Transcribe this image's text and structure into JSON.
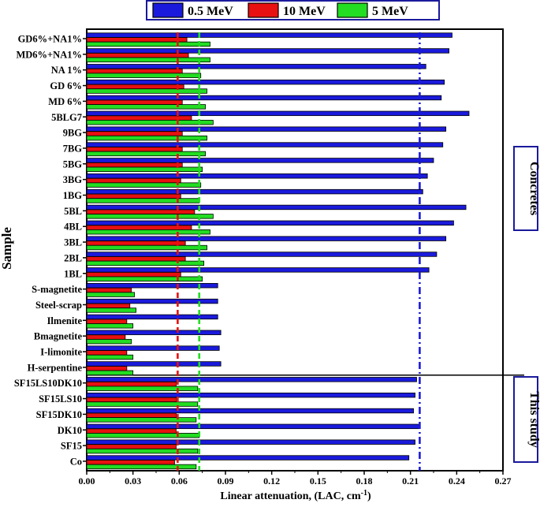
{
  "chart_data": {
    "type": "bar",
    "orientation": "horizontal",
    "xlabel": "Linear attenuation, (LAC, cm",
    "xlabel_sup": "-1",
    "xlabel_close": ")",
    "ylabel": "Sample",
    "xlim": [
      0.0,
      0.27
    ],
    "xticks": [
      "0.00",
      "0.03",
      "0.06",
      "0.09",
      "0.12",
      "0.15",
      "0.18",
      "0.21",
      "0.24",
      "0.27"
    ],
    "legend_position": "top-center",
    "group_labels": {
      "concretes": "Concretes",
      "this_study": "This study"
    },
    "categories": [
      "GD6%+NA1%",
      "MD6%+NA1%",
      "NA 1%",
      "GD 6%",
      "MD 6%",
      "5BLG7",
      "9BG",
      "7BG",
      "5BG",
      "3BG",
      "1BG",
      "5BL",
      "4BL",
      "3BL",
      "2BL",
      "1BL",
      "S-magnetite",
      "Steel-scrap",
      "Ilmenite",
      "Bmagnetite",
      "I-limonite",
      "H-serpentine",
      "SF15LS10DK10",
      "SF15LS10",
      "SF15DK10",
      "DK10",
      "SF15",
      "Co"
    ],
    "series": [
      {
        "name": "0.5 MeV",
        "color": "#1a1adc",
        "values": [
          0.237,
          0.235,
          0.22,
          0.232,
          0.23,
          0.248,
          0.233,
          0.231,
          0.225,
          0.221,
          0.218,
          0.246,
          0.238,
          0.233,
          0.227,
          0.222,
          0.085,
          0.085,
          0.085,
          0.087,
          0.086,
          0.087,
          0.214,
          0.213,
          0.212,
          0.216,
          0.213,
          0.209
        ]
      },
      {
        "name": "10 MeV",
        "color": "#e81010",
        "values": [
          0.065,
          0.066,
          0.062,
          0.063,
          0.062,
          0.068,
          0.062,
          0.062,
          0.062,
          0.061,
          0.061,
          0.07,
          0.068,
          0.064,
          0.064,
          0.061,
          0.029,
          0.028,
          0.026,
          0.025,
          0.026,
          0.026,
          0.058,
          0.058,
          0.058,
          0.058,
          0.058,
          0.057
        ]
      },
      {
        "name": "5 MeV",
        "color": "#22dd22",
        "values": [
          0.08,
          0.08,
          0.074,
          0.078,
          0.077,
          0.082,
          0.078,
          0.077,
          0.075,
          0.074,
          0.073,
          0.082,
          0.08,
          0.078,
          0.076,
          0.075,
          0.031,
          0.032,
          0.03,
          0.029,
          0.03,
          0.03,
          0.072,
          0.072,
          0.071,
          0.073,
          0.072,
          0.071
        ]
      }
    ],
    "reference_lines": [
      {
        "series": "10 MeV",
        "x": 0.059
      },
      {
        "series": "5 MeV",
        "x": 0.073
      },
      {
        "series": "0.5 MeV",
        "x": 0.216
      }
    ]
  }
}
